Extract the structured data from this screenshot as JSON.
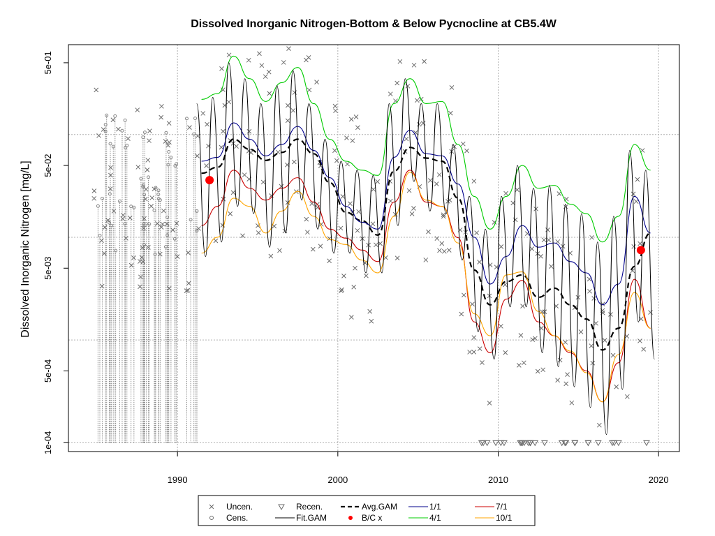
{
  "chart_data": {
    "type": "line",
    "title": "Dissolved Inorganic Nitrogen-Bottom & Below Pycnocline at CB5.4W",
    "xlabel": "",
    "ylabel": "Dissolved Inorganic Nitrogen [mg/L]",
    "xlim": [
      1983.2,
      2021.3
    ],
    "ylim": [
      8.2e-05,
      0.75
    ],
    "log_y": true,
    "grid": true,
    "x_ticks": [
      {
        "value": 1990,
        "label": "1990"
      },
      {
        "value": 2000,
        "label": "2000"
      },
      {
        "value": 2010,
        "label": "2010"
      },
      {
        "value": 2020,
        "label": "2020"
      }
    ],
    "y_ticks": [
      {
        "value": 0.0001,
        "label": "1e-04"
      },
      {
        "value": 0.0005,
        "label": "5e-04"
      },
      {
        "value": 0.005,
        "label": "5e-03"
      },
      {
        "value": 0.05,
        "label": "5e-02"
      },
      {
        "value": 0.5,
        "label": "5e-01"
      }
    ],
    "y_gridlines": [
      0.0001,
      0.001,
      0.01,
      0.1
    ],
    "x_gridlines": [
      1990,
      2000,
      2010,
      2020
    ],
    "legend": {
      "position": "bottom",
      "entries": [
        {
          "label": "Uncen.",
          "symbol": "x",
          "color": "#6b6b6b"
        },
        {
          "label": "Cens.",
          "symbol": "o",
          "color": "#6b6b6b"
        },
        {
          "label": "Recen.",
          "symbol": "triangle-down",
          "color": "#6b6b6b"
        },
        {
          "label": "Fit.GAM",
          "symbol": "line",
          "color": "#000000"
        },
        {
          "label": "Avg.GAM",
          "symbol": "dashed-line",
          "color": "#000000"
        },
        {
          "label": "B/C x",
          "symbol": "dot",
          "color": "#ff0000"
        },
        {
          "label": "1/1",
          "symbol": "line",
          "color": "#00008b"
        },
        {
          "label": "4/1",
          "symbol": "line",
          "color": "#00cc00"
        },
        {
          "label": "7/1",
          "symbol": "line",
          "color": "#cc0000"
        },
        {
          "label": "10/1",
          "symbol": "line",
          "color": "#ffa500"
        }
      ]
    },
    "series": [
      {
        "name": "Avg.GAM",
        "color": "#000000",
        "x": [
          1991.5,
          1992.5,
          1993.5,
          1994.5,
          1995.5,
          1996.5,
          1997.5,
          1998.5,
          1999.5,
          2000.5,
          2001.5,
          2002.5,
          2003.5,
          2004.5,
          2005.5,
          2006.5,
          2007.5,
          2008.5,
          2009.5,
          2010.5,
          2011.5,
          2012.5,
          2013.5,
          2014.5,
          2015.5,
          2016.5,
          2017.5,
          2018.5,
          2019.5
        ],
        "y": [
          0.042,
          0.048,
          0.09,
          0.072,
          0.056,
          0.067,
          0.09,
          0.065,
          0.034,
          0.0175,
          0.0145,
          0.0105,
          0.044,
          0.075,
          0.059,
          0.055,
          0.024,
          0.0048,
          0.0022,
          0.0037,
          0.0043,
          0.0026,
          0.0032,
          0.0022,
          0.0016,
          0.0008,
          0.0013,
          0.0052,
          0.011
        ]
      },
      {
        "name": "1/1",
        "color": "#00008b",
        "x": [
          1991.5,
          1992.5,
          1993.5,
          1994.5,
          1995.5,
          1996.5,
          1997.5,
          1998.5,
          1999.5,
          2000.5,
          2001.5,
          2002.5,
          2003.5,
          2004.5,
          2005.5,
          2006.5,
          2007.5,
          2008.5,
          2009.5,
          2010.5,
          2011.5,
          2012.5,
          2013.5,
          2014.5,
          2015.5,
          2016.5,
          2017.5,
          2018.5,
          2019.5
        ],
        "y": [
          0.055,
          0.06,
          0.13,
          0.09,
          0.062,
          0.08,
          0.12,
          0.07,
          0.038,
          0.02,
          0.014,
          0.012,
          0.06,
          0.11,
          0.065,
          0.062,
          0.033,
          0.01,
          0.0035,
          0.0065,
          0.013,
          0.008,
          0.0088,
          0.0058,
          0.0045,
          0.0022,
          0.0035,
          0.025,
          0.011
        ]
      },
      {
        "name": "4/1",
        "color": "#00cc00",
        "x": [
          1991.5,
          1992.5,
          1993.5,
          1994.5,
          1995.5,
          1996.5,
          1997.5,
          1998.5,
          1999.5,
          2000.5,
          2001.5,
          2002.5,
          2003.5,
          2004.5,
          2005.5,
          2006.5,
          2007.5,
          2008.5,
          2009.5,
          2010.5,
          2011.5,
          2012.5,
          2013.5,
          2014.5,
          2015.5,
          2016.5,
          2017.5,
          2018.5,
          2019.5
        ],
        "y": [
          0.22,
          0.25,
          0.58,
          0.35,
          0.21,
          0.32,
          0.45,
          0.2,
          0.09,
          0.055,
          0.045,
          0.04,
          0.2,
          0.35,
          0.2,
          0.21,
          0.08,
          0.025,
          0.012,
          0.025,
          0.05,
          0.03,
          0.032,
          0.021,
          0.017,
          0.009,
          0.016,
          0.08,
          0.045
        ]
      },
      {
        "name": "7/1",
        "color": "#cc0000",
        "x": [
          1991.5,
          1992.5,
          1993.5,
          1994.5,
          1995.5,
          1996.5,
          1997.5,
          1998.5,
          1999.5,
          2000.5,
          2001.5,
          2002.5,
          2003.5,
          2004.5,
          2005.5,
          2006.5,
          2007.5,
          2008.5,
          2009.5,
          2010.5,
          2011.5,
          2012.5,
          2013.5,
          2014.5,
          2015.5,
          2016.5,
          2017.5,
          2018.5,
          2019.5
        ],
        "y": [
          0.013,
          0.02,
          0.045,
          0.03,
          0.023,
          0.03,
          0.038,
          0.022,
          0.012,
          0.0098,
          0.0075,
          0.0058,
          0.022,
          0.045,
          0.022,
          0.02,
          0.0099,
          0.0015,
          0.00075,
          0.0025,
          0.0038,
          0.0015,
          0.0011,
          0.00075,
          0.0005,
          0.00025,
          0.0006,
          0.0039,
          0.0013
        ]
      },
      {
        "name": "10/1",
        "color": "#ffa500",
        "x": [
          1991.5,
          1992.5,
          1993.5,
          1994.5,
          1995.5,
          1996.5,
          1997.5,
          1998.5,
          1999.5,
          2000.5,
          2001.5,
          2002.5,
          2003.5,
          2004.5,
          2005.5,
          2006.5,
          2007.5,
          2008.5,
          2009.5,
          2010.5,
          2011.5,
          2012.5,
          2013.5,
          2014.5,
          2015.5,
          2016.5,
          2017.5,
          2018.5,
          2019.5
        ],
        "y": [
          0.007,
          0.01,
          0.024,
          0.02,
          0.011,
          0.018,
          0.028,
          0.016,
          0.0095,
          0.0085,
          0.006,
          0.0045,
          0.016,
          0.043,
          0.023,
          0.02,
          0.0088,
          0.0018,
          0.0011,
          0.0043,
          0.0046,
          0.0019,
          0.0011,
          0.00078,
          0.00048,
          0.00025,
          0.00072,
          0.0029,
          0.0013
        ]
      },
      {
        "name": "Fit.GAM",
        "color": "#000000",
        "x": [
          1991.2,
          1991.75,
          1992.2,
          1992.75,
          1993.2,
          1993.75,
          1994.2,
          1994.75,
          1995.2,
          1995.75,
          1996.2,
          1996.75,
          1997.2,
          1997.75,
          1998.2,
          1998.75,
          1999.2,
          1999.75,
          2000.2,
          2000.75,
          2001.2,
          2001.75,
          2002.2,
          2002.75,
          2003.2,
          2003.75,
          2004.2,
          2004.75,
          2005.2,
          2005.75,
          2006.2,
          2006.75,
          2007.2,
          2007.75,
          2008.2,
          2008.75,
          2009.2,
          2009.75,
          2010.2,
          2010.75,
          2011.2,
          2011.75,
          2012.2,
          2012.75,
          2013.2,
          2013.75,
          2014.2,
          2014.75,
          2015.2,
          2015.75,
          2016.2,
          2016.75,
          2017.2,
          2017.75,
          2018.2,
          2018.75,
          2019.2,
          2019.75
        ],
        "y": [
          0.2,
          0.0065,
          0.23,
          0.009,
          0.5,
          0.02,
          0.35,
          0.017,
          0.2,
          0.008,
          0.3,
          0.011,
          0.42,
          0.023,
          0.2,
          0.012,
          0.09,
          0.007,
          0.055,
          0.007,
          0.045,
          0.0045,
          0.04,
          0.0045,
          0.2,
          0.013,
          0.35,
          0.035,
          0.2,
          0.018,
          0.2,
          0.017,
          0.08,
          0.006,
          0.025,
          0.0012,
          0.012,
          0.00065,
          0.025,
          0.0021,
          0.05,
          0.0021,
          0.03,
          0.00075,
          0.032,
          0.00055,
          0.021,
          0.00035,
          0.017,
          0.00022,
          0.009,
          0.00012,
          0.016,
          0.00033,
          0.07,
          0.0015,
          0.045,
          0.00065
        ]
      },
      {
        "name": "B/C x",
        "color": "#ff0000",
        "x": [
          1992.0,
          2018.9
        ],
        "y": [
          0.036,
          0.0075
        ]
      }
    ]
  }
}
